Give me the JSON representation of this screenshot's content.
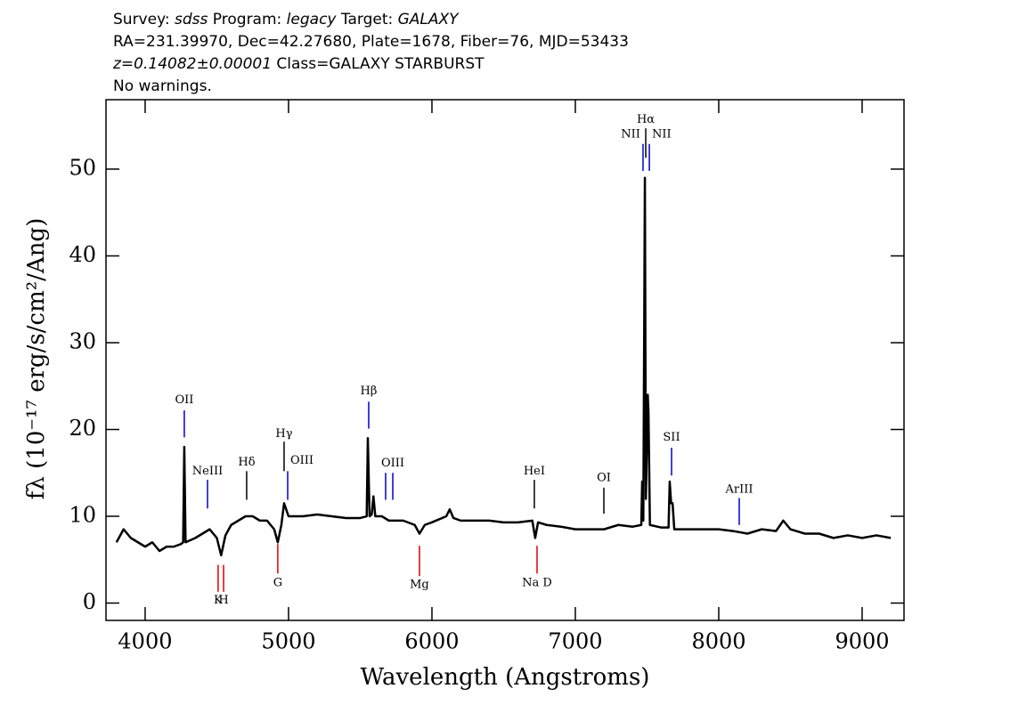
{
  "chart_data": {
    "type": "line",
    "header": [
      [
        {
          "text": "Survey: ",
          "italic": false
        },
        {
          "text": "sdss",
          "italic": true
        },
        {
          "text": " Program: ",
          "italic": false
        },
        {
          "text": "legacy",
          "italic": true
        },
        {
          "text": " Target: ",
          "italic": false
        },
        {
          "text": "GALAXY",
          "italic": true
        }
      ],
      [
        {
          "text": "RA=231.39970, Dec=42.27680, Plate=1678, Fiber=76, MJD=53433",
          "italic": false
        }
      ],
      [
        {
          "text": "z=0.14082±0.00001",
          "italic": true
        },
        {
          "text": " Class=GALAXY STARBURST",
          "italic": false
        }
      ],
      [
        {
          "text": "No warnings.",
          "italic": false
        }
      ]
    ],
    "x_label": "Wavelength (Angstroms)",
    "y_label": "fλ (10⁻¹⁷ erg/s/cm²/Ang)",
    "xlim": [
      3727,
      9292
    ],
    "ylim": [
      -2,
      58
    ],
    "xticks": [
      4000,
      5000,
      6000,
      7000,
      8000,
      9000
    ],
    "yticks": [
      0,
      10,
      20,
      30,
      40,
      50
    ],
    "x": [
      3800,
      3850,
      3900,
      3950,
      4000,
      4050,
      4100,
      4150,
      4200,
      4250,
      4265,
      4273,
      4282,
      4350,
      4400,
      4450,
      4500,
      4530,
      4560,
      4600,
      4650,
      4700,
      4750,
      4800,
      4850,
      4900,
      4925,
      4950,
      4969,
      5000,
      5100,
      5200,
      5300,
      5400,
      5500,
      5545,
      5553,
      5565,
      5580,
      5592,
      5605,
      5650,
      5700,
      5800,
      5880,
      5913,
      5950,
      6000,
      6100,
      6124,
      6150,
      6200,
      6300,
      6400,
      6500,
      6600,
      6700,
      6720,
      6740,
      6800,
      6900,
      7000,
      7100,
      7200,
      7300,
      7400,
      7460,
      7466,
      7474,
      7480,
      7485,
      7492,
      7505,
      7510,
      7520,
      7600,
      7650,
      7658,
      7668,
      7678,
      7690,
      7800,
      7900,
      8000,
      8100,
      8200,
      8300,
      8400,
      8450,
      8500,
      8600,
      8700,
      8800,
      8900,
      9000,
      9100,
      9200
    ],
    "series": [
      {
        "color": "#000000",
        "values": [
          7,
          8.5,
          7.5,
          7,
          6.5,
          7,
          6,
          6.5,
          6.5,
          6.8,
          7,
          18,
          7,
          7.5,
          8,
          8.5,
          7.5,
          5.5,
          7.8,
          9,
          9.5,
          10,
          10,
          9.5,
          9.5,
          8.5,
          7,
          9,
          11.5,
          10,
          10,
          10.2,
          10,
          9.8,
          9.8,
          10,
          19,
          10,
          10.2,
          12.3,
          10,
          10,
          9.5,
          9.5,
          9,
          8,
          9,
          9.3,
          10,
          10.8,
          9.8,
          9.5,
          9.5,
          9.5,
          9.3,
          9.3,
          9.5,
          7.5,
          9.3,
          9,
          8.8,
          8.5,
          8.5,
          8.5,
          9,
          8.8,
          9,
          14,
          9.5,
          30.8,
          49,
          12,
          24,
          22,
          9,
          8.7,
          8.7,
          14,
          11.5,
          11.5,
          8.5,
          8.5,
          8.5,
          8.5,
          8.3,
          8,
          8.5,
          8.3,
          9.5,
          8.5,
          8,
          8,
          7.5,
          7.8,
          7.5,
          7.8,
          7.5
        ]
      }
    ],
    "annotations": [
      {
        "label": "OII",
        "x": 4273,
        "y1": 19.1,
        "y2": 22.2,
        "label_y": 23.4,
        "color": "#0000cc",
        "align": "middle"
      },
      {
        "label": "NeIII",
        "x": 4435,
        "y1": 10.9,
        "y2": 14.2,
        "label_y": 15.2,
        "color": "#0000cc",
        "align": "middle"
      },
      {
        "label": "Hδ",
        "x": 4708,
        "y1": 11.9,
        "y2": 15.2,
        "label_y": 16.2,
        "color": "#000000",
        "align": "middle"
      },
      {
        "label": "Hγ",
        "x": 4969,
        "y1": 15.2,
        "y2": 18.6,
        "label_y": 19.5,
        "color": "#000000",
        "align": "middle"
      },
      {
        "label": "OIII",
        "x": 4994,
        "y1": 11.9,
        "y2": 15.2,
        "label_y": 16.4,
        "color": "#0000cc",
        "align": "start"
      },
      {
        "label": "Hβ",
        "x": 5559,
        "y1": 20.1,
        "y2": 23.2,
        "label_y": 24.4,
        "color": "#0000cc",
        "align": "middle"
      },
      {
        "label": null,
        "x": 5677,
        "y1": 11.9,
        "y2": 15,
        "label_y": null,
        "color": "#0000cc",
        "align": "middle"
      },
      {
        "label": "OIII",
        "x": 5727,
        "y1": 11.9,
        "y2": 15,
        "label_y": 16.1,
        "color": "#0000cc",
        "align": "middle"
      },
      {
        "label": "HeI",
        "x": 6714,
        "y1": 10.9,
        "y2": 14.2,
        "label_y": 15.2,
        "color": "#000000",
        "align": "middle"
      },
      {
        "label": "OI",
        "x": 7199,
        "y1": 10.3,
        "y2": 13.3,
        "label_y": 14.4,
        "color": "#000000",
        "align": "middle"
      },
      {
        "label": "NII",
        "x": 7472,
        "y1": 49.8,
        "y2": 52.9,
        "label_y": 54,
        "color": "#0000cc",
        "align": "end"
      },
      {
        "label": "Hα",
        "x": 7491,
        "y1": 51.3,
        "y2": 54.7,
        "label_y": 55.7,
        "color": "#000000",
        "align": "middle"
      },
      {
        "label": "NII",
        "x": 7516,
        "y1": 49.8,
        "y2": 52.9,
        "label_y": 54,
        "color": "#0000cc",
        "align": "start"
      },
      {
        "label": "SII",
        "x": 7671,
        "y1": 14.7,
        "y2": 17.9,
        "label_y": 19.1,
        "color": "#0000cc",
        "align": "middle"
      },
      {
        "label": "ArIII",
        "x": 8143,
        "y1": 9,
        "y2": 12.1,
        "label_y": 13.1,
        "color": "#0000cc",
        "align": "middle"
      },
      {
        "label": "K",
        "x": 4509,
        "y1": 1.3,
        "y2": 4.4,
        "label_y": 0.3,
        "color": "#dd0000",
        "align": "middle"
      },
      {
        "label": "H",
        "x": 4547,
        "y1": 1.3,
        "y2": 4.4,
        "label_y": 0.3,
        "color": "#dd0000",
        "align": "middle"
      },
      {
        "label": "G",
        "x": 4925,
        "y1": 3.4,
        "y2": 6.8,
        "label_y": 2.3,
        "color": "#dd0000",
        "align": "middle"
      },
      {
        "label": "Mg",
        "x": 5913,
        "y1": 3.1,
        "y2": 6.6,
        "label_y": 2.1,
        "color": "#dd0000",
        "align": "middle"
      },
      {
        "label": "Na D",
        "x": 6733,
        "y1": 3.4,
        "y2": 6.6,
        "label_y": 2.3,
        "color": "#dd0000",
        "align": "middle"
      }
    ]
  }
}
